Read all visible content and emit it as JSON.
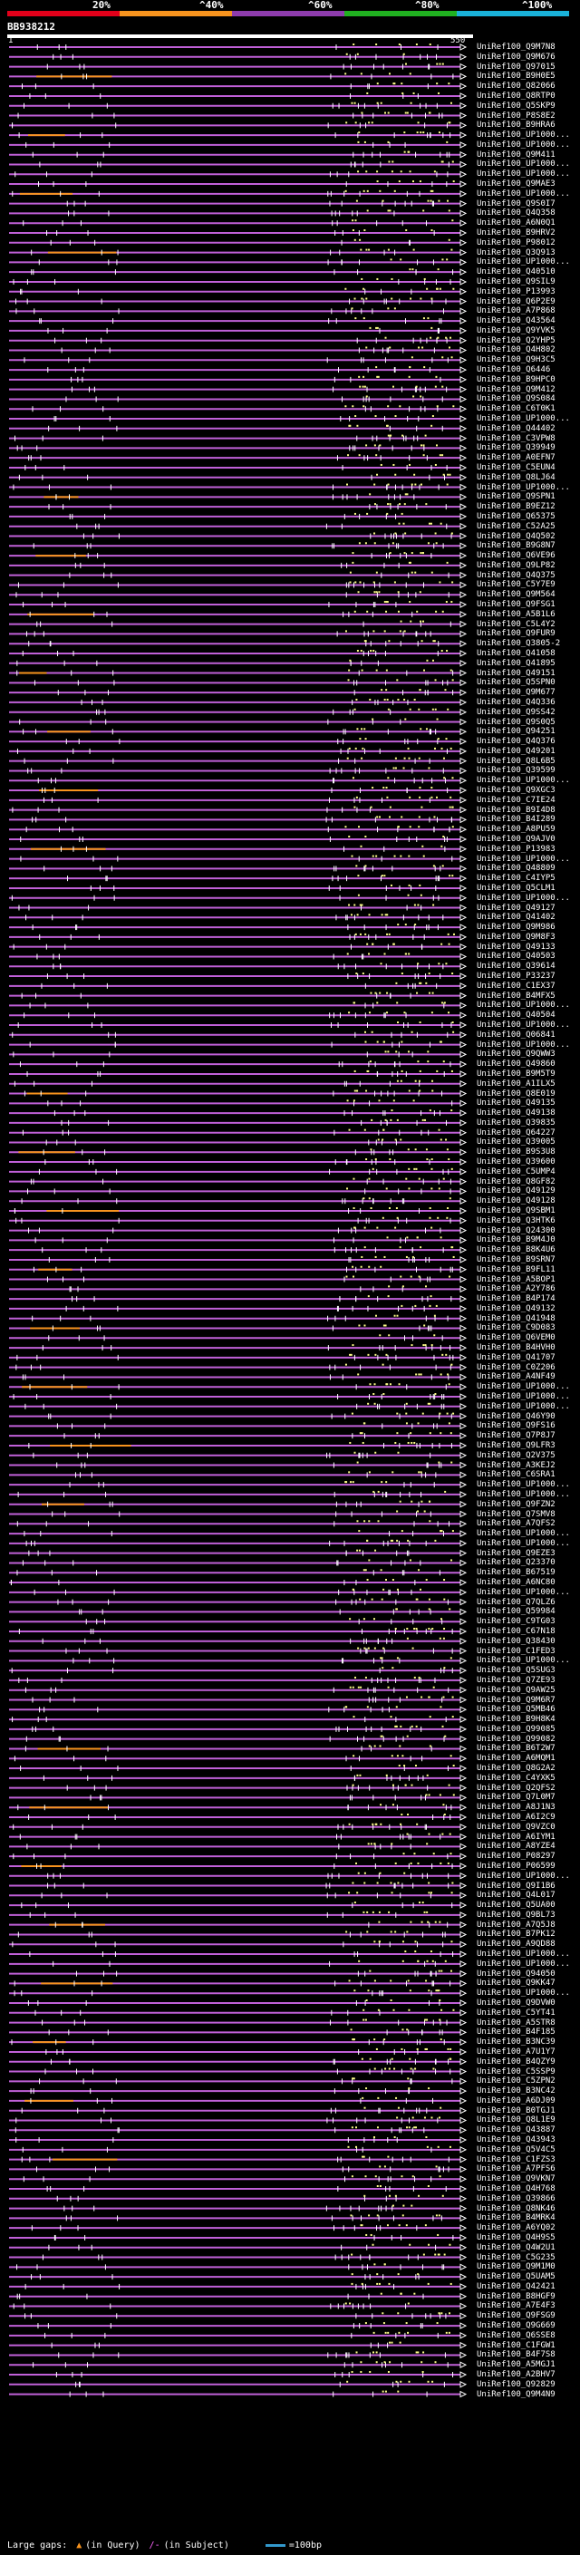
{
  "chart_data": {
    "type": "blast-hits-overview",
    "title": "BB938212",
    "query_length": 550,
    "ruler": {
      "start": "1",
      "end": "550"
    },
    "legend": {
      "labels": [
        "20%",
        "^40%",
        "^60%",
        "^80%",
        "^100%"
      ],
      "colors": [
        "#e2001a",
        "#f7931e",
        "#8e3cad",
        "#20b020",
        "#1ab2d9"
      ]
    },
    "hits": [
      "UniRef100_Q9M7N8",
      "UniRef100_Q9M676",
      "UniRef100_Q97015",
      "UniRef100_B9H0E5",
      "UniRef100_Q82066",
      "UniRef100_Q8RTP0",
      "UniRef100_Q5SKP9",
      "UniRef100_P8S8E2",
      "UniRef100_B9HRA6",
      "UniRef100_UP1000...",
      "UniRef100_UP1000...",
      "UniRef100_Q9M411",
      "UniRef100_UP1000...",
      "UniRef100_UP1000...",
      "UniRef100_Q9MAE3",
      "UniRef100_UP1000...",
      "UniRef100_Q9S0I7",
      "UniRef100_Q4Q358",
      "UniRef100_A6N0Q1",
      "UniRef100_B9HRV2",
      "UniRef100_P98012",
      "UniRef100_Q3Q913",
      "UniRef100_UP1000...",
      "UniRef100_Q40510",
      "UniRef100_Q9SIL9",
      "UniRef100_P13993",
      "UniRef100_Q6P2E9",
      "UniRef100_A7P868",
      "UniRef100_Q43564",
      "UniRef100_Q9YVK5",
      "UniRef100_Q2YHP5",
      "UniRef100_Q4H802",
      "UniRef100_Q9H3C5",
      "UniRef100_Q6446",
      "UniRef100_B9HPC0",
      "UniRef100_Q9M412",
      "UniRef100_Q9S084",
      "UniRef100_C6T0K1",
      "UniRef100_UP1000...",
      "UniRef100_Q44402",
      "UniRef100_C3VPW8",
      "UniRef100_Q39949",
      "UniRef100_A0EFN7",
      "UniRef100_C5EUN4",
      "UniRef100_Q8LJ64",
      "UniRef100_UP1000...",
      "UniRef100_Q9SPN1",
      "UniRef100_B9EZ12",
      "UniRef100_Q65375",
      "UniRef100_C52A25",
      "UniRef100_Q4Q502",
      "UniRef100_B9G8N7",
      "UniRef100_Q6VE96",
      "UniRef100_Q9LP82",
      "UniRef100_Q4Q375",
      "UniRef100_C5Y7E9",
      "UniRef100_Q9M564",
      "UniRef100_Q9FSG1",
      "UniRef100_A5B1L6",
      "UniRef100_C5L4Y2",
      "UniRef100_Q9FUR9",
      "UniRef100_Q3805-2",
      "UniRef100_Q41058",
      "UniRef100_Q41895",
      "UniRef100_Q49151",
      "UniRef100_Q5SPN0",
      "UniRef100_Q9M677",
      "UniRef100_Q4Q336",
      "UniRef100_Q9SS42",
      "UniRef100_Q9S0Q5",
      "UniRef100_Q94251",
      "UniRef100_Q4Q376",
      "UniRef100_Q49201",
      "UniRef100_Q8L6B5",
      "UniRef100_Q39599",
      "UniRef100_UP1000...",
      "UniRef100_Q9XGC3",
      "UniRef100_C7IE24",
      "UniRef100_B9I4D8",
      "UniRef100_B4I289",
      "UniRef100_A8PU59",
      "UniRef100_Q9AJV0",
      "UniRef100_P13983",
      "UniRef100_UP1000...",
      "UniRef100_Q48809",
      "UniRef100_C4IYP5",
      "UniRef100_Q5CLM1",
      "UniRef100_UP1000...",
      "UniRef100_Q49127",
      "UniRef100_Q41402",
      "UniRef100_Q9M986",
      "UniRef100_Q9M8F3",
      "UniRef100_Q49133",
      "UniRef100_Q40503",
      "UniRef100_Q39614",
      "UniRef100_P33237",
      "UniRef100_C1EX37",
      "UniRef100_B4MFX5",
      "UniRef100_UP1000...",
      "UniRef100_Q40504",
      "UniRef100_UP1000...",
      "UniRef100_Q06841",
      "UniRef100_UP1000...",
      "UniRef100_Q9QWW3",
      "UniRef100_Q49860",
      "UniRef100_B9M5T9",
      "UniRef100_A1ILX5",
      "UniRef100_Q8E019",
      "UniRef100_Q49135",
      "UniRef100_Q49138",
      "UniRef100_Q39835",
      "UniRef100_Q64227",
      "UniRef100_Q39005",
      "UniRef100_B9S3U8",
      "UniRef100_Q39600",
      "UniRef100_C5UMP4",
      "UniRef100_Q8GF82",
      "UniRef100_Q49129",
      "UniRef100_Q49128",
      "UniRef100_Q9SBM1",
      "UniRef100_Q3HTK6",
      "UniRef100_Q24300",
      "UniRef100_B9M4J0",
      "UniRef100_B8K4U6",
      "UniRef100_B9SRN7",
      "UniRef100_B9FL11",
      "UniRef100_A5BOP1",
      "UniRef100_A2Y786",
      "UniRef100_B4P174",
      "UniRef100_Q49132",
      "UniRef100_Q41948",
      "UniRef100_C9D083",
      "UniRef100_Q6VEM0",
      "UniRef100_B4HVH0",
      "UniRef100_Q41707",
      "UniRef100_C0Z206",
      "UniRef100_A4NF49",
      "UniRef100_UP1000...",
      "UniRef100_UP1000...",
      "UniRef100_UP1000...",
      "UniRef100_Q46Y90",
      "UniRef100_Q9FS16",
      "UniRef100_Q7P8J7",
      "UniRef100_Q9LFR3",
      "UniRef100_Q2V375",
      "UniRef100_A3KEJ2",
      "UniRef100_C6SRA1",
      "UniRef100_UP1000...",
      "UniRef100_UP1000...",
      "UniRef100_Q9FZN2",
      "UniRef100_Q7SMV8",
      "UniRef100_A7QFS2",
      "UniRef100_UP1000...",
      "UniRef100_UP1000...",
      "UniRef100_Q9EZE3",
      "UniRef100_Q23370",
      "UniRef100_B67519",
      "UniRef100_A6NC80",
      "UniRef100_UP1000...",
      "UniRef100_Q7QLZ6",
      "UniRef100_Q59984",
      "UniRef100_C9TG03",
      "UniRef100_C67N18",
      "UniRef100_Q38430",
      "UniRef100_C1FED3",
      "UniRef100_UP1000...",
      "UniRef100_Q5SUG3",
      "UniRef100_Q7ZE93",
      "UniRef100_Q9AW25",
      "UniRef100_Q9M6R7",
      "UniRef100_Q5MB46",
      "UniRef100_B9H8K4",
      "UniRef100_Q99085",
      "UniRef100_Q99082",
      "UniRef100_B6T2W7",
      "UniRef100_A6MQM1",
      "UniRef100_Q8G2A2",
      "UniRef100_C4YXK5",
      "UniRef100_Q2QFS2",
      "UniRef100_Q7L0M7",
      "UniRef100_A8J1N3",
      "UniRef100_A6I2C9",
      "UniRef100_Q9VZC0",
      "UniRef100_A6IYM1",
      "UniRef100_A8YZE4",
      "UniRef100_P08297",
      "UniRef100_P06599",
      "UniRef100_UP1000...",
      "UniRef100_Q9I1B6",
      "UniRef100_Q4L017",
      "UniRef100_Q5UA00",
      "UniRef100_Q9BL73",
      "UniRef100_A7Q5J8",
      "UniRef100_B7PK12",
      "UniRef100_A9QD88",
      "UniRef100_UP1000...",
      "UniRef100_UP1000...",
      "UniRef100_Q94050",
      "UniRef100_Q9KK47",
      "UniRef100_UP1000...",
      "UniRef100_Q9DVW0",
      "UniRef100_C5YT41",
      "UniRef100_A5STR8",
      "UniRef100_B4F185",
      "UniRef100_B3NC39",
      "UniRef100_A7U1Y7",
      "UniRef100_B4QZY9",
      "UniRef100_C5SSP9",
      "UniRef100_C5ZPN2",
      "UniRef100_B3NC42",
      "UniRef100_A6DJ09",
      "UniRef100_B0TGJ1",
      "UniRef100_Q8L1E9",
      "UniRef100_Q43887",
      "UniRef100_Q43943",
      "UniRef100_Q5V4C5",
      "UniRef100_C1FZS3",
      "UniRef100_A7PFS6",
      "UniRef100_Q9VKN7",
      "UniRef100_Q4H768",
      "UniRef100_Q39866",
      "UniRef100_Q8NK46",
      "UniRef100_B4MRK4",
      "UniRef100_A6YQ02",
      "UniRef100_Q4H9S5",
      "UniRef100_Q4W2U1",
      "UniRef100_C5G235",
      "UniRef100_Q9M1M0",
      "UniRef100_Q5UAM5",
      "UniRef100_Q42421",
      "UniRef100_B8HGF9",
      "UniRef100_A7E4F3",
      "UniRef100_Q9FSG9",
      "UniRef100_Q9G669",
      "UniRef100_Q6SSE8",
      "UniRef100_C1FGW1",
      "UniRef100_B4F7S8",
      "UniRef100_A5MGJ1",
      "UniRef100_A2BHV7",
      "UniRef100_Q92829",
      "UniRef100_Q9M4N9"
    ]
  },
  "footer": {
    "label": "Large gaps:",
    "query_gap": "(in Query)",
    "subject_gap": "(in Subject)",
    "scale": "=100bp"
  }
}
